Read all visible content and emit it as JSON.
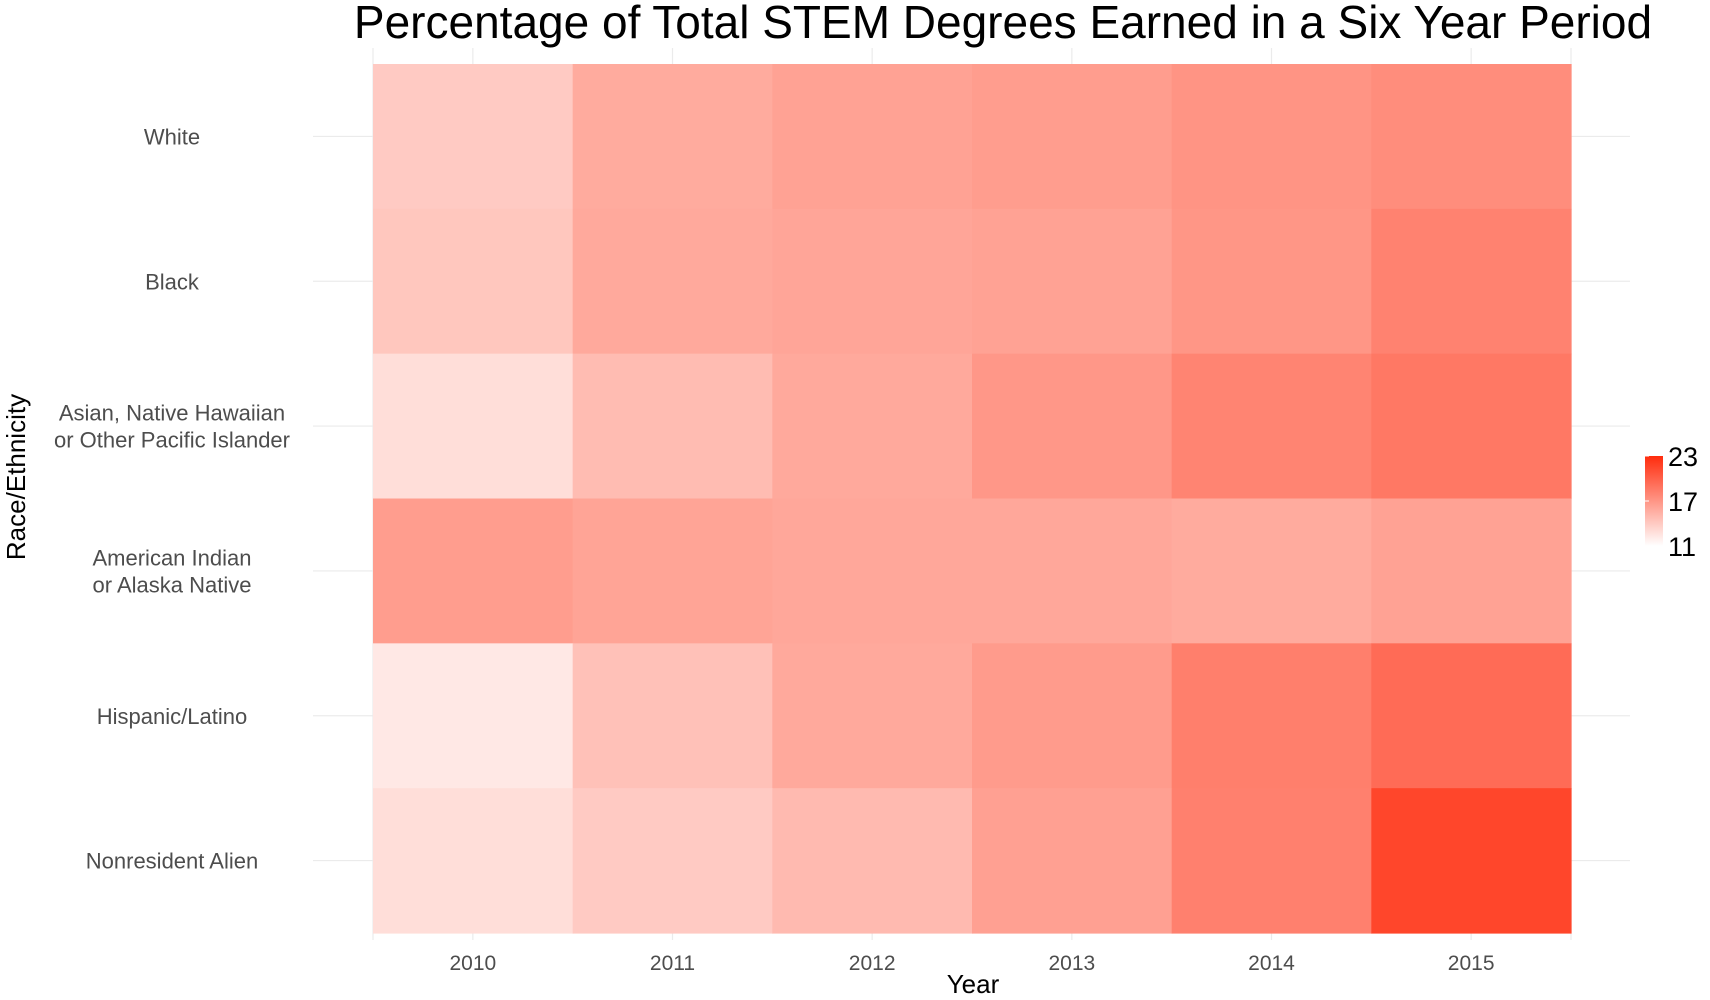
{
  "chart_data": {
    "type": "heatmap",
    "title": "Percentage of Total STEM Degrees Earned in a Six Year Period",
    "xlabel": "Year",
    "ylabel": "Race/Ethnicity",
    "x": [
      "2010",
      "2011",
      "2012",
      "2013",
      "2014",
      "2015"
    ],
    "y": [
      "White",
      "Black",
      "Asian, Native Hawaiian\nor Other Pacific Islander",
      "American Indian\nor Alaska Native",
      "Hispanic/Latino",
      "Nonresident Alien"
    ],
    "values": [
      [
        14.0,
        15.8,
        16.3,
        16.6,
        17.1,
        17.5
      ],
      [
        14.2,
        15.9,
        16.1,
        16.3,
        17.0,
        18.1
      ],
      [
        12.9,
        14.8,
        15.9,
        16.9,
        18.0,
        18.7
      ],
      [
        16.6,
        16.2,
        16.0,
        16.0,
        15.8,
        16.3
      ],
      [
        12.3,
        14.5,
        15.9,
        16.7,
        18.3,
        19.4
      ],
      [
        12.9,
        14.0,
        14.9,
        16.4,
        18.2,
        21.5
      ]
    ],
    "color_range": [
      11,
      23
    ],
    "color_low": "#ffffff",
    "color_high": "#ff2c0d",
    "legend": {
      "position": "right",
      "ticks": [
        "23",
        "17",
        "11"
      ]
    },
    "grid": true
  }
}
